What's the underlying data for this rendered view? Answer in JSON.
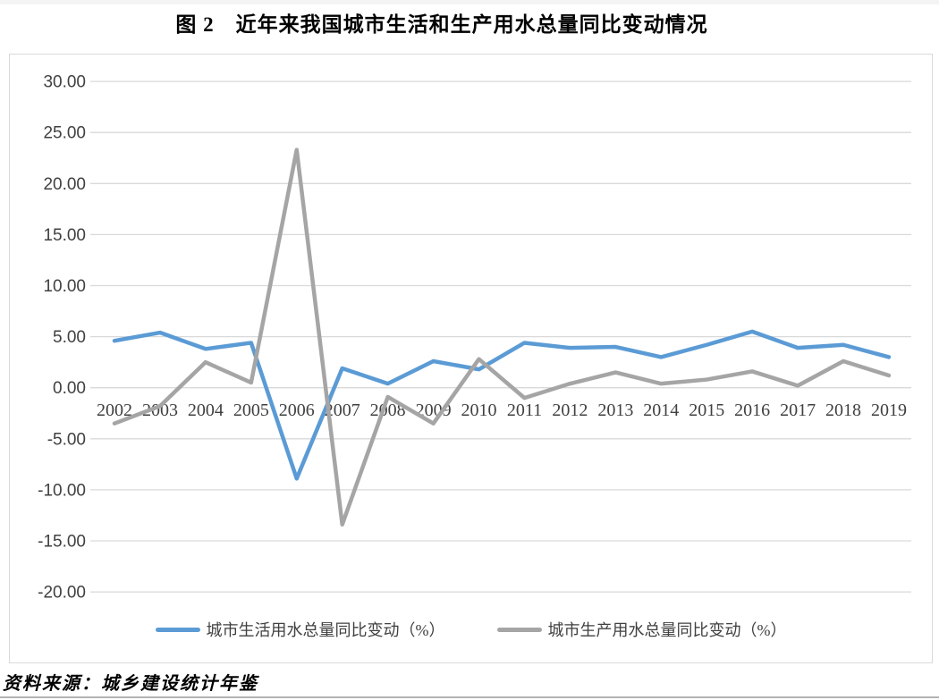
{
  "page": {
    "title": "图 2　近年来我国城市生活和生产用水总量同比变动情况",
    "source_note": "资料来源：城乡建设统计年鉴"
  },
  "colors": {
    "series_life_blue": "#5B9BD5",
    "series_production_gray": "#A5A5A5",
    "gridline": "#D9D9D9",
    "axis_text": "#404040",
    "chart_border": "#D9D9D9"
  },
  "chart_data": {
    "type": "line",
    "title": "图 2　近年来我国城市生活和生产用水总量同比变动情况",
    "categories": [
      "2002",
      "2003",
      "2004",
      "2005",
      "2006",
      "2007",
      "2008",
      "2009",
      "2010",
      "2011",
      "2012",
      "2013",
      "2014",
      "2015",
      "2016",
      "2017",
      "2018",
      "2019"
    ],
    "series": [
      {
        "name": "城市生活用水总量同比变动（%）",
        "color": "#5B9BD5",
        "values": [
          4.6,
          5.4,
          3.8,
          4.4,
          -8.9,
          1.9,
          0.4,
          2.6,
          1.8,
          4.4,
          3.9,
          4.0,
          3.0,
          4.2,
          5.5,
          3.9,
          4.2,
          3.0
        ]
      },
      {
        "name": "城市生产用水总量同比变动（%）",
        "color": "#A5A5A5",
        "values": [
          -3.5,
          -1.8,
          2.5,
          0.5,
          23.3,
          -13.4,
          -0.9,
          -3.5,
          2.8,
          -1.0,
          0.4,
          1.5,
          0.4,
          0.8,
          1.6,
          0.2,
          2.6,
          1.2
        ]
      }
    ],
    "xlabel": "",
    "ylabel": "",
    "ylim": [
      -20,
      30
    ],
    "ytick_step": 5,
    "ytick_label_format": "0.00",
    "grid": true,
    "legend_position": "bottom",
    "source": "资料来源：城乡建设统计年鉴"
  }
}
